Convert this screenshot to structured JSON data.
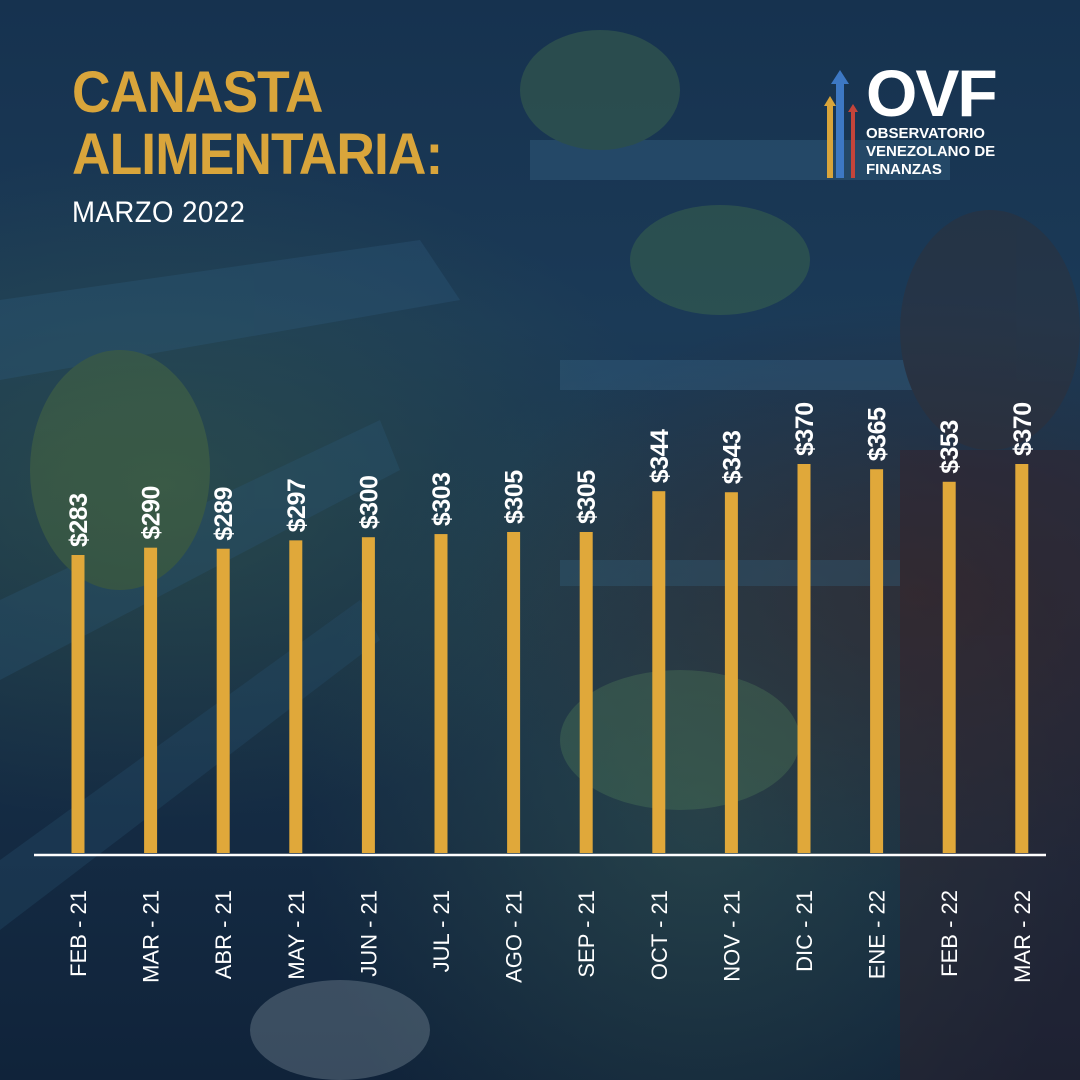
{
  "title": {
    "line1": "CANASTA",
    "line2": "ALIMENTARIA:",
    "subtitle": "MARZO 2022"
  },
  "logo": {
    "acronym": "OVF",
    "line1": "OBSERVATORIO",
    "line2": "VENEZOLANO DE",
    "line3": "FINANZAS",
    "icon": "upward-arrows-icon"
  },
  "colors": {
    "accent": "#d9a53b",
    "bar": "#e0a83a",
    "text": "#ffffff",
    "background": "#1b3a57",
    "logo_arrow_blue": "#3d78c4",
    "logo_arrow_red": "#c4443a",
    "logo_arrow_gold": "#d9a53b"
  },
  "chart_data": {
    "type": "bar",
    "title": "CANASTA ALIMENTARIA: MARZO 2022",
    "xlabel": "",
    "ylabel": "",
    "categories": [
      "FEB - 21",
      "MAR - 21",
      "ABR - 21",
      "MAY - 21",
      "JUN - 21",
      "JUL - 21",
      "AGO - 21",
      "SEP - 21",
      "OCT - 21",
      "NOV - 21",
      "DIC - 21",
      "ENE - 22",
      "FEB - 22",
      "MAR - 22"
    ],
    "values": [
      283,
      290,
      289,
      297,
      300,
      303,
      305,
      305,
      344,
      343,
      370,
      365,
      353,
      370
    ],
    "data_labels": [
      "$283",
      "$290",
      "$289",
      "$297",
      "$300",
      "$303",
      "$305",
      "$305",
      "$344",
      "$343",
      "$370",
      "$365",
      "$353",
      "$370"
    ],
    "ylim": [
      0,
      370
    ],
    "grid": false,
    "legend": "none"
  }
}
